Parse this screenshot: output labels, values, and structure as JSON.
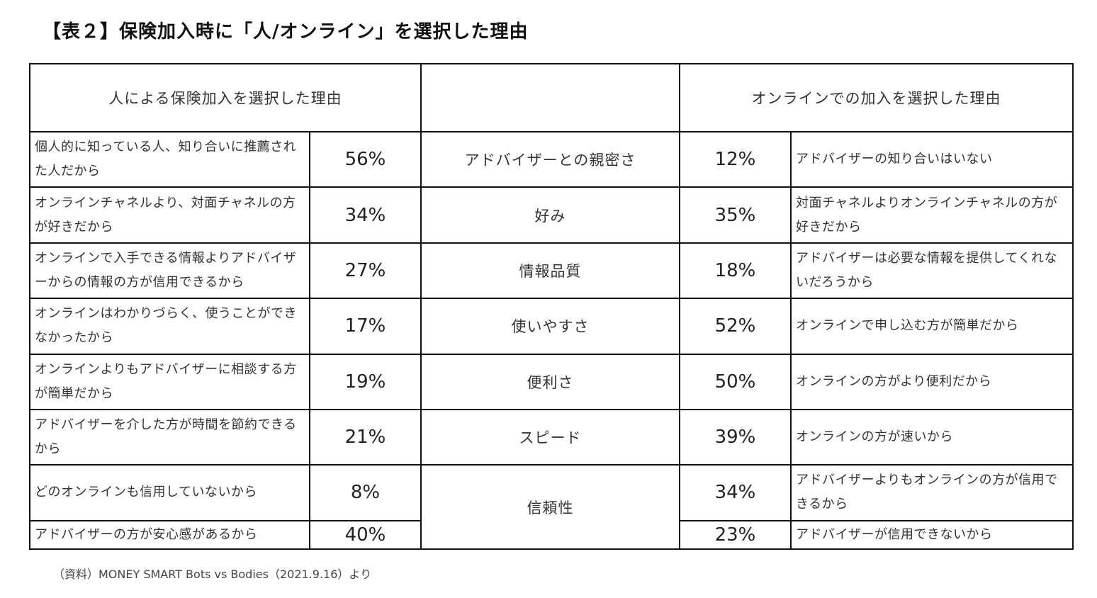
{
  "title": "【表２】保険加入時に「人/オンライン」を選択した理由",
  "table": {
    "header_left": "人による保険加入を選択した理由",
    "header_middle": "",
    "header_right": "オンラインでの加入を選択した理由",
    "rows": [
      {
        "left_reason": "個人的に知っている人、知り合いに推薦された人だから",
        "left_pct": "56%",
        "factor": "アドバイザーとの親密さ",
        "right_pct": "12%",
        "right_reason": "アドバイザーの知り合いはいない"
      },
      {
        "left_reason": "オンラインチャネルより、対面チャネルの方が好きだから",
        "left_pct": "34%",
        "factor": "好み",
        "right_pct": "35%",
        "right_reason": "対面チャネルよりオンラインチャネルの方が好きだから"
      },
      {
        "left_reason": "オンラインで入手できる情報よりアドバイザーからの情報の方が信用できるから",
        "left_pct": "27%",
        "factor": "情報品質",
        "right_pct": "18%",
        "right_reason": "アドバイザーは必要な情報を提供してくれないだろうから"
      },
      {
        "left_reason": "オンラインはわかりづらく、使うことができなかったから",
        "left_pct": "17%",
        "factor": "使いやすさ",
        "right_pct": "52%",
        "right_reason": "オンラインで申し込む方が簡単だから"
      },
      {
        "left_reason": "オンラインよりもアドバイザーに相談する方が簡単だから",
        "left_pct": "19%",
        "factor": "便利さ",
        "right_pct": "50%",
        "right_reason": "オンラインの方がより便利だから"
      },
      {
        "left_reason": "アドバイザーを介した方が時間を節約できるから",
        "left_pct": "21%",
        "factor": "スピード",
        "right_pct": "39%",
        "right_reason": "オンラインの方が速いから"
      },
      {
        "left_reason": "どのオンラインも信用していないから",
        "left_pct": "8%",
        "factor": "信頼性",
        "right_pct": "34%",
        "right_reason": "アドバイザーよりもオンラインの方が信用できるから"
      },
      {
        "left_reason": "アドバイザーの方が安心感があるから",
        "left_pct": "40%",
        "right_pct": "23%",
        "right_reason": "アドバイザーが信用できないから"
      }
    ]
  },
  "source": "（資料）MONEY SMART  Bots vs Bodies（2021.9.16）より"
}
